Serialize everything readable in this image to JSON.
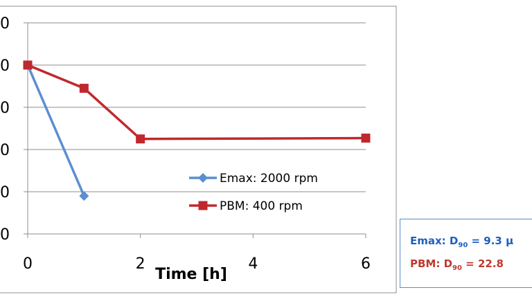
{
  "chart_data": {
    "type": "line",
    "xlabel": "Time [h]",
    "ylabel": "",
    "x_ticks": [
      0,
      2,
      4,
      6
    ],
    "y_tick_labels": [
      "0",
      "0",
      "0",
      "0",
      "0",
      "0"
    ],
    "xlim": [
      0,
      6
    ],
    "ylim": [
      0,
      5
    ],
    "grid": "horizontal",
    "legend_position": "center-right",
    "series": [
      {
        "name": "Emax: 2000 rpm",
        "color": "#5b8fd0",
        "marker": "diamond",
        "x": [
          0,
          1
        ],
        "y": [
          4,
          0.9
        ]
      },
      {
        "name": "PBM: 400 rpm",
        "color": "#c0282d",
        "marker": "square",
        "x": [
          0,
          1,
          2,
          6
        ],
        "y": [
          4,
          3.45,
          2.25,
          2.27
        ]
      }
    ]
  },
  "info_box": {
    "emax": {
      "prefix": "Emax: D",
      "sub": "90",
      "value": " = 9.3 µ"
    },
    "pbm": {
      "prefix": "PBM:  D",
      "sub": "90",
      "value": " = 22.8"
    }
  }
}
